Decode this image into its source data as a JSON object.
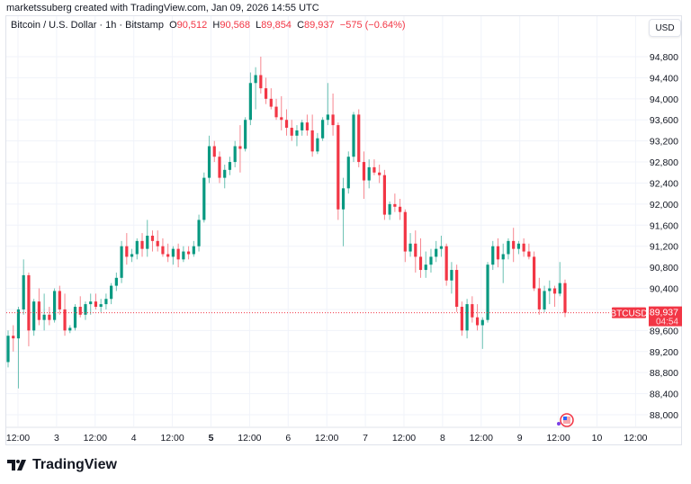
{
  "credit": "marketssuberg created with TradingView.com, Jan 09, 2026 14:55 UTC",
  "legend": {
    "symbol": "Bitcoin / U.S. Dollar · 1h · Bitstamp",
    "o_label": "O",
    "o": "90,512",
    "h_label": "H",
    "h": "90,568",
    "l_label": "L",
    "l": "89,854",
    "c_label": "C",
    "c": "89,937",
    "change": "−575 (−0.64%)"
  },
  "currency_button": "USD",
  "price_tag": {
    "symbol": "BTCUSD",
    "price": "89,937",
    "countdown": "04:54"
  },
  "brand": "TradingView",
  "colors": {
    "up": "#089981",
    "down": "#f23645",
    "grid": "#f0f3fa",
    "text": "#131722"
  },
  "chart_data": {
    "type": "candlestick",
    "title": "Bitcoin / U.S. Dollar · 1h · Bitstamp",
    "xlabel": "",
    "ylabel": "USD",
    "ylim": [
      87800,
      95100
    ],
    "grid": true,
    "y_ticks": [
      "94,800",
      "94,400",
      "94,000",
      "93,600",
      "93,200",
      "92,800",
      "92,400",
      "92,000",
      "91,600",
      "91,200",
      "90,800",
      "90,400",
      "90,000",
      "89,600",
      "89,200",
      "88,800",
      "88,400",
      "88,000"
    ],
    "x_ticks": [
      "12:00",
      "3",
      "12:00",
      "4",
      "12:00",
      "5",
      "12:00",
      "6",
      "12:00",
      "7",
      "12:00",
      "8",
      "12:00",
      "9",
      "12:00",
      "10",
      "12:00"
    ],
    "last_price": 89937,
    "ohlc_hourly_approx": [
      [
        89000,
        89600,
        88900,
        89500
      ],
      [
        89500,
        89700,
        89200,
        89450
      ],
      [
        89450,
        90050,
        88500,
        90000
      ],
      [
        90000,
        90950,
        89900,
        90650
      ],
      [
        90650,
        90700,
        89300,
        89600
      ],
      [
        89600,
        90200,
        89500,
        90150
      ],
      [
        90150,
        90400,
        89700,
        89800
      ],
      [
        89800,
        90300,
        89600,
        89900
      ],
      [
        89900,
        90050,
        89700,
        89800
      ],
      [
        89800,
        90400,
        89750,
        90350
      ],
      [
        90350,
        90450,
        89900,
        90000
      ],
      [
        90000,
        90300,
        89500,
        89600
      ],
      [
        89600,
        89700,
        89550,
        89650
      ],
      [
        89650,
        90100,
        89600,
        90050
      ],
      [
        90050,
        90250,
        89850,
        89900
      ],
      [
        89900,
        90150,
        89800,
        90100
      ],
      [
        90100,
        90300,
        89900,
        90150
      ],
      [
        90150,
        90300,
        90000,
        90050
      ],
      [
        90050,
        90200,
        89950,
        90100
      ],
      [
        90100,
        90300,
        90000,
        90200
      ],
      [
        90200,
        90500,
        90100,
        90450
      ],
      [
        90450,
        90700,
        90350,
        90600
      ],
      [
        90600,
        91300,
        90500,
        91200
      ],
      [
        91200,
        91450,
        90850,
        91000
      ],
      [
        91000,
        91150,
        90900,
        91050
      ],
      [
        91050,
        91350,
        90950,
        91300
      ],
      [
        91300,
        91450,
        91000,
        91150
      ],
      [
        91150,
        91700,
        91000,
        91400
      ],
      [
        91400,
        91500,
        91100,
        91300
      ],
      [
        91300,
        91500,
        91100,
        91200
      ],
      [
        91200,
        91350,
        91000,
        91050
      ],
      [
        91050,
        91250,
        90900,
        91000
      ],
      [
        91000,
        91200,
        90850,
        91150
      ],
      [
        91150,
        91250,
        90800,
        90950
      ],
      [
        90950,
        91200,
        90900,
        91100
      ],
      [
        91100,
        91200,
        90950,
        91050
      ],
      [
        91050,
        91300,
        91000,
        91200
      ],
      [
        91200,
        91800,
        91100,
        91700
      ],
      [
        91700,
        92600,
        91650,
        92500
      ],
      [
        92500,
        93300,
        92400,
        93100
      ],
      [
        93100,
        93200,
        92800,
        92900
      ],
      [
        92900,
        93000,
        92400,
        92500
      ],
      [
        92500,
        92750,
        92300,
        92650
      ],
      [
        92650,
        92900,
        92550,
        92800
      ],
      [
        92800,
        93200,
        92700,
        93100
      ],
      [
        93100,
        93500,
        92600,
        93050
      ],
      [
        93050,
        93650,
        93000,
        93600
      ],
      [
        93600,
        94500,
        93500,
        94300
      ],
      [
        94300,
        94600,
        93800,
        94450
      ],
      [
        94450,
        94800,
        94100,
        94200
      ],
      [
        94200,
        94400,
        93900,
        94000
      ],
      [
        94000,
        94200,
        93800,
        93850
      ],
      [
        93850,
        94000,
        93600,
        93650
      ],
      [
        93650,
        94050,
        93400,
        93600
      ],
      [
        93600,
        93800,
        93300,
        93450
      ],
      [
        93450,
        93600,
        93200,
        93300
      ],
      [
        93300,
        93500,
        93100,
        93400
      ],
      [
        93400,
        93600,
        93300,
        93550
      ],
      [
        93550,
        93700,
        93300,
        93400
      ],
      [
        93400,
        93700,
        92900,
        93000
      ],
      [
        93000,
        93350,
        92950,
        93250
      ],
      [
        93250,
        93650,
        93200,
        93600
      ],
      [
        93600,
        94300,
        93500,
        93700
      ],
      [
        93700,
        94100,
        93300,
        93500
      ],
      [
        93500,
        93550,
        91700,
        91900
      ],
      [
        91900,
        92500,
        91200,
        92300
      ],
      [
        92300,
        93000,
        92200,
        92900
      ],
      [
        92900,
        93750,
        92800,
        93700
      ],
      [
        93700,
        93800,
        92700,
        92800
      ],
      [
        92800,
        93000,
        92100,
        92450
      ],
      [
        92450,
        92850,
        92300,
        92700
      ],
      [
        92700,
        92850,
        92550,
        92600
      ],
      [
        92600,
        92750,
        92400,
        92550
      ],
      [
        92550,
        92650,
        91700,
        91800
      ],
      [
        91800,
        92050,
        91700,
        92000
      ],
      [
        92000,
        92200,
        91850,
        91950
      ],
      [
        91950,
        92100,
        91700,
        91850
      ],
      [
        91850,
        91900,
        90900,
        91100
      ],
      [
        91100,
        91450,
        91000,
        91250
      ],
      [
        91250,
        91500,
        90700,
        91000
      ],
      [
        91000,
        91350,
        90600,
        90750
      ],
      [
        90750,
        91100,
        90600,
        90850
      ],
      [
        90850,
        91150,
        90700,
        91000
      ],
      [
        91000,
        91300,
        90900,
        91150
      ],
      [
        91150,
        91400,
        91000,
        91200
      ],
      [
        91200,
        91250,
        90450,
        90550
      ],
      [
        90550,
        90900,
        90300,
        90750
      ],
      [
        90750,
        90850,
        89950,
        90050
      ],
      [
        90050,
        90150,
        89500,
        89600
      ],
      [
        89600,
        90200,
        89450,
        90100
      ],
      [
        90100,
        90250,
        89750,
        89850
      ],
      [
        89850,
        90100,
        89600,
        89700
      ],
      [
        89700,
        89850,
        89250,
        89800
      ],
      [
        89800,
        90900,
        89750,
        90850
      ],
      [
        90850,
        91300,
        90750,
        91200
      ],
      [
        91200,
        91350,
        90800,
        90950
      ],
      [
        90950,
        91250,
        90500,
        91050
      ],
      [
        91050,
        91350,
        90950,
        91300
      ],
      [
        91300,
        91550,
        90900,
        91150
      ],
      [
        91150,
        91300,
        91050,
        91250
      ],
      [
        91250,
        91350,
        91000,
        91100
      ],
      [
        91100,
        91250,
        90950,
        91000
      ],
      [
        91000,
        91100,
        90350,
        90400
      ],
      [
        90400,
        90600,
        89900,
        90000
      ],
      [
        90000,
        90450,
        89950,
        90350
      ],
      [
        90350,
        90550,
        90100,
        90400
      ],
      [
        90400,
        90450,
        90050,
        90300
      ],
      [
        90300,
        90900,
        90250,
        90500
      ],
      [
        90500,
        90568,
        89854,
        89937
      ]
    ]
  }
}
